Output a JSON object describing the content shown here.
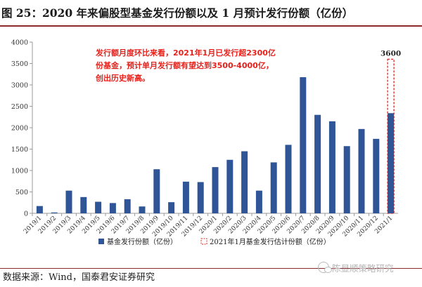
{
  "figure": {
    "title": "图 25：2020 年来偏股型基金发行份额以及 1 月预计发行份额（亿份）",
    "source": "数据来源：Wind，国泰君安证券研究",
    "watermark": "陈显顺策略研究"
  },
  "colors": {
    "bar": "#2f5597",
    "estimate": "#e8201a",
    "annotation": "#e8201a",
    "rule": "#8a2a2a",
    "axis": "#999999"
  },
  "chart_data": {
    "type": "bar",
    "categories": [
      "2019/1",
      "2019/2",
      "2019/3",
      "2019/4",
      "2019/5",
      "2019/6",
      "2019/7",
      "2019/8",
      "2019/9",
      "2019/10",
      "2019/11",
      "2019/12",
      "2020/1",
      "2020/2",
      "2020/3",
      "2020/4",
      "2020/5",
      "2020/6",
      "2020/7",
      "2020/8",
      "2020/9",
      "2020/10",
      "2020/11",
      "2020/12",
      "2021/1"
    ],
    "series": [
      {
        "name": "基金发行份额（亿份）",
        "values": [
          170,
          20,
          530,
          380,
          270,
          240,
          330,
          160,
          1030,
          260,
          740,
          730,
          1080,
          1250,
          1450,
          530,
          1190,
          1600,
          3180,
          2300,
          2150,
          1570,
          1970,
          1740,
          2340
        ]
      },
      {
        "name": "2021年1月基金发行估计份额（亿份）",
        "values": [
          null,
          null,
          null,
          null,
          null,
          null,
          null,
          null,
          null,
          null,
          null,
          null,
          null,
          null,
          null,
          null,
          null,
          null,
          null,
          null,
          null,
          null,
          null,
          null,
          3600
        ]
      }
    ],
    "ylim": [
      0,
      4000
    ],
    "yticks": [
      0,
      500,
      1000,
      1500,
      2000,
      2500,
      3000,
      3500,
      4000
    ],
    "data_labels": [
      {
        "category": "2021/1",
        "text": "3600"
      }
    ],
    "annotation": [
      "发行额月度环比来看，2021年1月已发行超2300亿",
      "份基金，预计单月发行额有望达到3500-4000亿，",
      "创出历史新高。"
    ],
    "legend_position": "bottom",
    "grid": false
  }
}
